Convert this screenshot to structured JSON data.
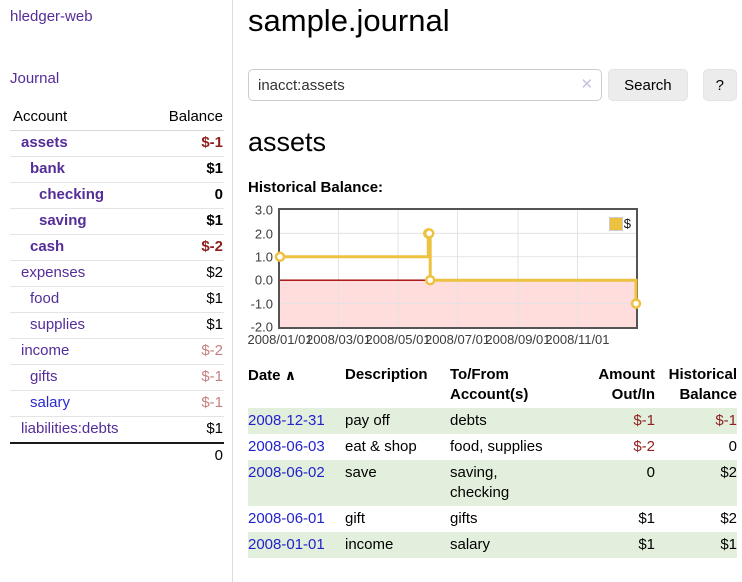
{
  "colors": {
    "link_purple": "#552d99",
    "link_blue": "#2222cc",
    "negative_strong": "#8f1f1f",
    "negative_muted": "#c57f7f",
    "row_stripe_green": "#e2efdc",
    "series_yellow": "#edc240",
    "negative_region_pink": "#ffdddd",
    "zero_line_red": "#a40000"
  },
  "sidebar": {
    "brand": "hledger-web",
    "journal_label": "Journal",
    "columns": {
      "account": "Account",
      "balance": "Balance"
    },
    "accounts": [
      {
        "name": "assets",
        "balance": "$-1",
        "indent": 1,
        "bold": true,
        "balance_style": "neg-strong"
      },
      {
        "name": "bank",
        "balance": "$1",
        "indent": 2,
        "bold": true,
        "balance_style": "pos"
      },
      {
        "name": "checking",
        "balance": "0",
        "indent": 3,
        "bold": true,
        "balance_style": "pos"
      },
      {
        "name": "saving",
        "balance": "$1",
        "indent": 3,
        "bold": true,
        "balance_style": "pos"
      },
      {
        "name": "cash",
        "balance": "$-2",
        "indent": 2,
        "bold": true,
        "balance_style": "neg-strong"
      },
      {
        "name": "expenses",
        "balance": "$2",
        "indent": 1,
        "bold": false,
        "balance_style": "pos"
      },
      {
        "name": "food",
        "balance": "$1",
        "indent": 2,
        "bold": false,
        "balance_style": "pos"
      },
      {
        "name": "supplies",
        "balance": "$1",
        "indent": 2,
        "bold": false,
        "balance_style": "pos"
      },
      {
        "name": "income",
        "balance": "$-2",
        "indent": 1,
        "bold": false,
        "balance_style": "neg-muted"
      },
      {
        "name": "gifts",
        "balance": "$-1",
        "indent": 2,
        "bold": false,
        "balance_style": "neg-muted"
      },
      {
        "name": "salary",
        "balance": "$-1",
        "indent": 2,
        "bold": false,
        "balance_style": "neg-muted",
        "link_style": "unvisited"
      },
      {
        "name": "liabilities:debts",
        "balance": "$1",
        "indent": 1,
        "bold": false,
        "balance_style": "pos"
      }
    ],
    "total": "0"
  },
  "header": {
    "title": "sample.journal"
  },
  "search": {
    "value": "inacct:assets",
    "clear_icon": "✕",
    "button_label": "Search",
    "help_label": "?"
  },
  "account_page": {
    "title": "assets",
    "chart_heading": "Historical Balance:"
  },
  "chart_data": {
    "type": "line",
    "title": "Historical Balance:",
    "style": "step-line-with-markers",
    "x_domain": [
      "2008-01-01",
      "2008-12-31"
    ],
    "ylim": [
      -2,
      3
    ],
    "y_ticks": [
      "3.0",
      "2.0",
      "1.0",
      "0.0",
      "-1.0",
      "-2.0"
    ],
    "x_ticks": [
      "2008/01/01",
      "2008/03/01",
      "2008/05/01",
      "2008/07/01",
      "2008/09/01",
      "2008/11/01"
    ],
    "grid": true,
    "legend_position": "top-right",
    "series": [
      {
        "name": "$",
        "color": "#edc240",
        "points": [
          {
            "date": "2008-01-01",
            "value": 1
          },
          {
            "date": "2008-06-01",
            "value": 2
          },
          {
            "date": "2008-06-02",
            "value": 2
          },
          {
            "date": "2008-06-03",
            "value": 0
          },
          {
            "date": "2008-12-31",
            "value": -1
          }
        ]
      }
    ],
    "negative_region_color": "#ffdddd",
    "zero_line_color": "#a40000"
  },
  "register": {
    "columns": {
      "date": "Date",
      "description": "Description",
      "accounts": "To/From Account(s)",
      "amount": "Amount Out/In",
      "balance": "Historical Balance"
    },
    "sort_icon": "∧",
    "rows": [
      {
        "date": "2008-12-31",
        "description": "pay off",
        "accounts": "debts",
        "amount": "$-1",
        "balance": "$-1"
      },
      {
        "date": "2008-06-03",
        "description": "eat & shop",
        "accounts": "food, supplies",
        "amount": "$-2",
        "balance": "0"
      },
      {
        "date": "2008-06-02",
        "description": "save",
        "accounts": "saving, checking",
        "amount": "0",
        "balance": "$2"
      },
      {
        "date": "2008-06-01",
        "description": "gift",
        "accounts": "gifts",
        "amount": "$1",
        "balance": "$2"
      },
      {
        "date": "2008-01-01",
        "description": "income",
        "accounts": "salary",
        "amount": "$1",
        "balance": "$1"
      }
    ]
  }
}
